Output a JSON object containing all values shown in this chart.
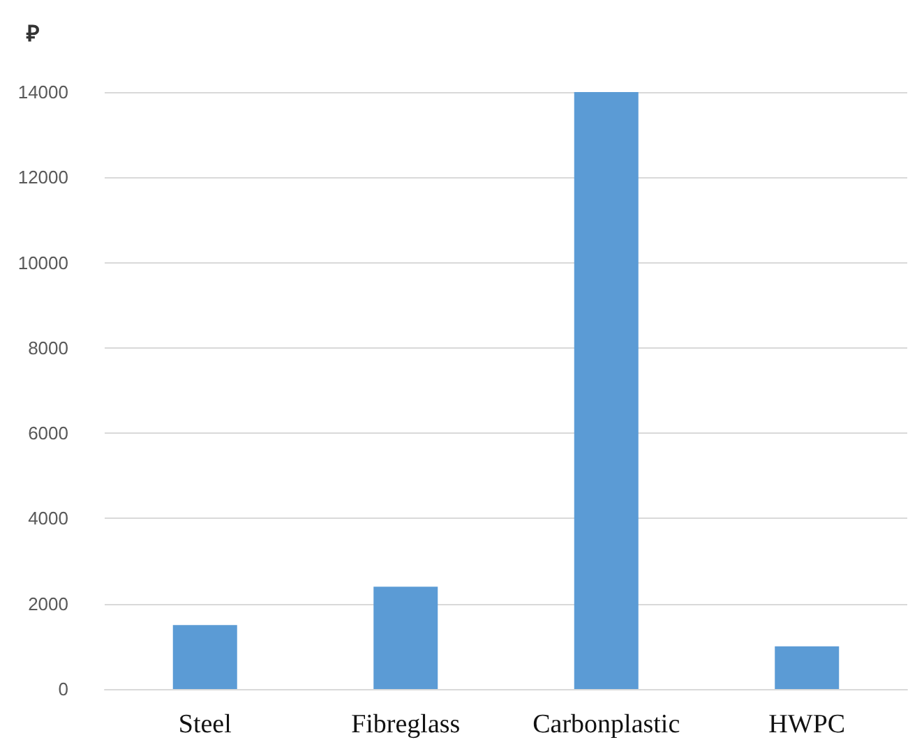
{
  "chart_data": {
    "type": "bar",
    "ylabel": "₽",
    "categories": [
      "Steel",
      "Fibreglass",
      "Carbonplastic",
      "HWPC"
    ],
    "values": [
      1500,
      2400,
      14000,
      1000
    ],
    "color": "#5b9bd5",
    "ylim": [
      0,
      14000
    ],
    "yticks": [
      0,
      2000,
      4000,
      6000,
      8000,
      10000,
      12000,
      14000
    ],
    "grid": "y"
  }
}
